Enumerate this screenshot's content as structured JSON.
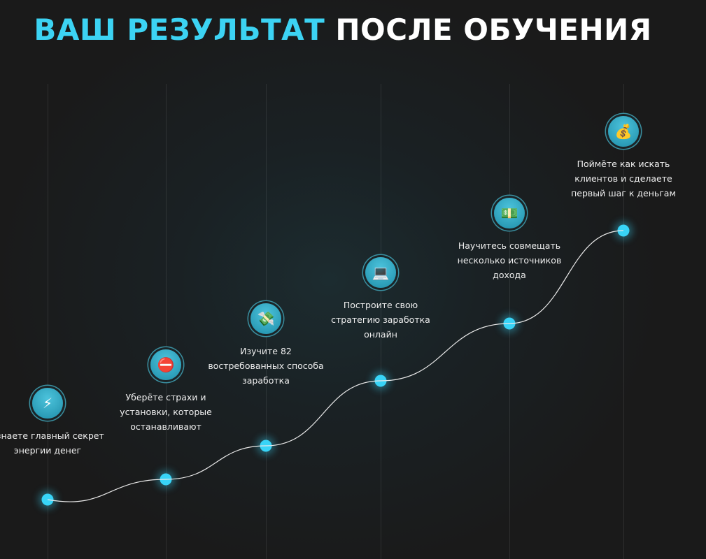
{
  "title": {
    "accent": "ВАШ РЕЗУЛЬТАТ",
    "rest": "ПОСЛЕ ОБУЧЕНИЯ"
  },
  "colors": {
    "accent": "#3cd3f3",
    "dot": "#38d4f7"
  },
  "steps": [
    {
      "icon": "lightning-icon",
      "glyph": "⚡",
      "text": "Узнаете главный секрет энергии денег"
    },
    {
      "icon": "no-entry-icon",
      "glyph": "⛔",
      "text": "Уберёте страхи и установки, которые останавливают"
    },
    {
      "icon": "flying-money-icon",
      "glyph": "💸",
      "text": "Изучите 82 востребованных способа заработка"
    },
    {
      "icon": "laptop-icon",
      "glyph": "💻",
      "text": "Построите свою стратегию заработка онлайн"
    },
    {
      "icon": "dollar-bills-icon",
      "glyph": "💵",
      "text": "Научитесь совмещать несколько источников дохода"
    },
    {
      "icon": "money-bag-icon",
      "glyph": "💰",
      "text": "Поймёте как искать клиентов и сделаете первый шаг к деньгам"
    }
  ]
}
